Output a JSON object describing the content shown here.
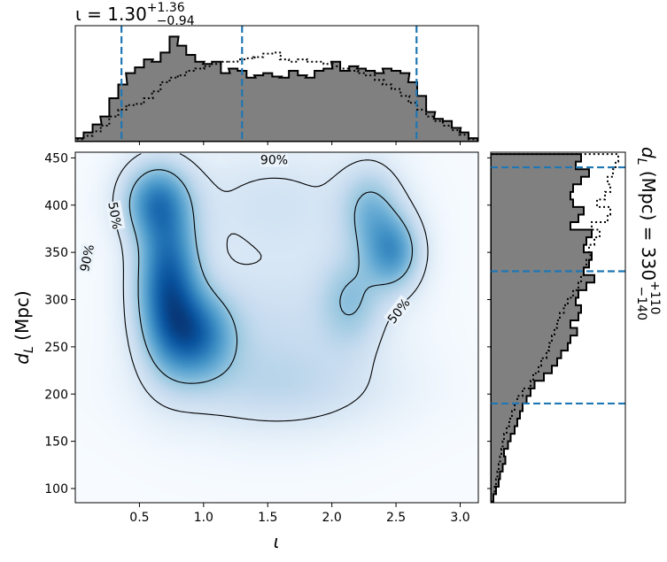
{
  "chart_data": [
    {
      "id": "top-marginal",
      "type": "histogram",
      "title": {
        "param": "ι",
        "equals": " = ",
        "median": "1.30",
        "upper": "+1.36",
        "lower": "−0.94"
      },
      "xlim": [
        0.0,
        3.1416
      ],
      "x": [
        0.03,
        0.1,
        0.17,
        0.23,
        0.3,
        0.37,
        0.43,
        0.5,
        0.57,
        0.63,
        0.7,
        0.77,
        0.83,
        0.9,
        0.97,
        1.03,
        1.1,
        1.17,
        1.23,
        1.3,
        1.37,
        1.43,
        1.5,
        1.57,
        1.63,
        1.7,
        1.77,
        1.83,
        1.9,
        1.97,
        2.03,
        2.1,
        2.17,
        2.23,
        2.3,
        2.37,
        2.43,
        2.5,
        2.57,
        2.63,
        2.7,
        2.77,
        2.83,
        2.9,
        2.97,
        3.03,
        3.1
      ],
      "series": [
        {
          "values": [
            0.03,
            0.08,
            0.15,
            0.22,
            0.38,
            0.5,
            0.6,
            0.65,
            0.72,
            0.7,
            0.78,
            0.92,
            0.84,
            0.76,
            0.7,
            0.68,
            0.7,
            0.6,
            0.64,
            0.62,
            0.56,
            0.58,
            0.6,
            0.57,
            0.56,
            0.62,
            0.58,
            0.56,
            0.62,
            0.64,
            0.7,
            0.62,
            0.66,
            0.64,
            0.62,
            0.6,
            0.64,
            0.62,
            0.6,
            0.52,
            0.4,
            0.26,
            0.2,
            0.18,
            0.12,
            0.08,
            0.03
          ],
          "style": "filled"
        },
        {
          "values": [
            0.02,
            0.05,
            0.09,
            0.14,
            0.22,
            0.28,
            0.32,
            0.33,
            0.38,
            0.44,
            0.52,
            0.56,
            0.58,
            0.62,
            0.64,
            0.66,
            0.68,
            0.7,
            0.7,
            0.72,
            0.73,
            0.74,
            0.77,
            0.78,
            0.72,
            0.7,
            0.72,
            0.7,
            0.7,
            0.68,
            0.66,
            0.64,
            0.62,
            0.6,
            0.58,
            0.54,
            0.5,
            0.46,
            0.4,
            0.34,
            0.28,
            0.22,
            0.18,
            0.14,
            0.1,
            0.06,
            0.02
          ],
          "style": "dotted"
        }
      ],
      "quantiles": [
        0.36,
        1.3,
        2.66
      ]
    },
    {
      "id": "right-marginal",
      "type": "histogram",
      "title": {
        "param": "d",
        "sub": "L",
        "unit": " (Mpc) = ",
        "median": "330",
        "upper": "+110",
        "lower": "−140"
      },
      "ylim": [
        85,
        456
      ],
      "y": [
        90,
        98,
        106,
        114,
        122,
        130,
        138,
        146,
        154,
        162,
        170,
        178,
        186,
        194,
        202,
        210,
        218,
        226,
        234,
        242,
        250,
        258,
        266,
        274,
        282,
        290,
        298,
        306,
        314,
        322,
        330,
        338,
        346,
        354,
        362,
        370,
        378,
        386,
        394,
        402,
        410,
        418,
        426,
        434,
        442,
        450
      ],
      "series": [
        {
          "values": [
            0.02,
            0.04,
            0.06,
            0.07,
            0.09,
            0.11,
            0.1,
            0.13,
            0.15,
            0.18,
            0.2,
            0.22,
            0.24,
            0.27,
            0.3,
            0.33,
            0.4,
            0.46,
            0.5,
            0.53,
            0.58,
            0.6,
            0.65,
            0.6,
            0.66,
            0.68,
            0.64,
            0.66,
            0.72,
            0.78,
            0.7,
            0.74,
            0.76,
            0.7,
            0.72,
            0.76,
            0.6,
            0.66,
            0.7,
            0.62,
            0.6,
            0.62,
            0.68,
            0.74,
            0.64,
            0.68
          ],
          "style": "filled"
        },
        {
          "values": [
            0.02,
            0.03,
            0.04,
            0.05,
            0.06,
            0.07,
            0.08,
            0.09,
            0.1,
            0.12,
            0.14,
            0.16,
            0.18,
            0.2,
            0.24,
            0.3,
            0.32,
            0.36,
            0.38,
            0.42,
            0.44,
            0.46,
            0.48,
            0.5,
            0.52,
            0.55,
            0.58,
            0.62,
            0.66,
            0.68,
            0.7,
            0.72,
            0.75,
            0.74,
            0.78,
            0.82,
            0.76,
            0.88,
            0.9,
            0.8,
            0.86,
            0.9,
            0.88,
            0.92,
            0.94,
            0.96
          ],
          "style": "dotted"
        }
      ],
      "quantiles": [
        190,
        330,
        440
      ]
    },
    {
      "id": "joint-posterior",
      "type": "heatmap",
      "xlabel": "ι",
      "ylabel": {
        "param": "d",
        "sub": "L",
        "unit": " (Mpc)"
      },
      "xlim": [
        0.0,
        3.1416
      ],
      "ylim": [
        85,
        456
      ],
      "xticks": [
        0.5,
        1.0,
        1.5,
        2.0,
        2.5,
        3.0
      ],
      "yticks": [
        100,
        150,
        200,
        250,
        300,
        350,
        400,
        450
      ],
      "colormap": "Blues",
      "contours": [
        {
          "level": "90%",
          "label_positions": [
            {
              "x": 1.55,
              "y": 448,
              "angle": 0
            },
            {
              "x": 0.09,
              "y": 344,
              "angle": -78
            }
          ]
        },
        {
          "level": "50%",
          "label_positions": [
            {
              "x": 0.31,
              "y": 389,
              "angle": 80
            },
            {
              "x": 2.52,
              "y": 288,
              "angle": -52
            }
          ]
        }
      ],
      "blobs": [
        {
          "x": 0.72,
          "y": 318,
          "sx": 0.17,
          "sy": 55,
          "w": 1.0
        },
        {
          "x": 0.62,
          "y": 405,
          "sx": 0.18,
          "sy": 28,
          "w": 0.65
        },
        {
          "x": 0.95,
          "y": 262,
          "sx": 0.2,
          "sy": 32,
          "w": 0.75
        },
        {
          "x": 2.48,
          "y": 350,
          "sx": 0.15,
          "sy": 28,
          "w": 0.65
        },
        {
          "x": 2.3,
          "y": 395,
          "sx": 0.16,
          "sy": 32,
          "w": 0.42
        },
        {
          "x": 2.15,
          "y": 300,
          "sx": 0.17,
          "sy": 34,
          "w": 0.36
        },
        {
          "x": 1.55,
          "y": 265,
          "sx": 0.55,
          "sy": 60,
          "w": 0.22
        },
        {
          "x": 1.55,
          "y": 405,
          "sx": 0.55,
          "sy": 42,
          "w": 0.17
        },
        {
          "x": 1.6,
          "y": 205,
          "sx": 0.6,
          "sy": 30,
          "w": 0.16
        }
      ]
    }
  ]
}
